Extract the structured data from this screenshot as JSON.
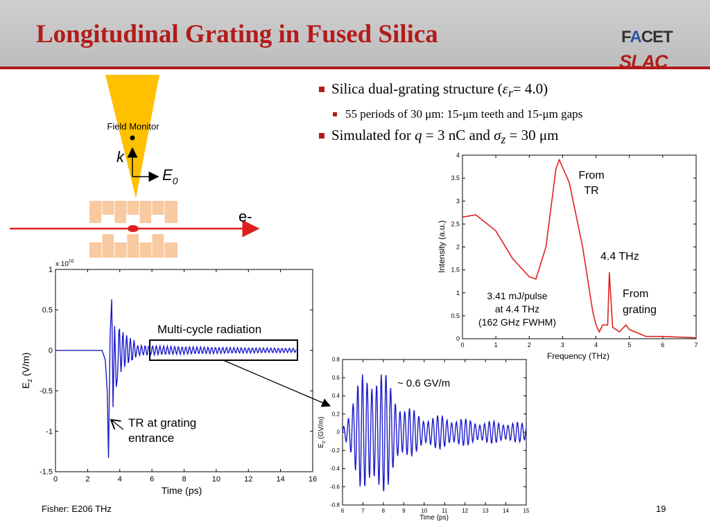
{
  "title": "Longitudinal Grating in Fused Silica",
  "logos": {
    "facet_prefix": "F",
    "facet_a": "A",
    "facet_suffix": "CET",
    "slac": "SLAC"
  },
  "bullets": {
    "b1_text": "Silica dual-grating structure (",
    "b1_eps": "ε",
    "b1_sub": "r",
    "b1_end": "= 4.0)",
    "b2": "55 periods of 30 μm: 15-μm teeth and 15-μm gaps",
    "b3_pre": "Simulated for ",
    "b3_q": "q",
    "b3_mid": " = 3 nC and ",
    "b3_sigma": "σ",
    "b3_sub": "z",
    "b3_end": " = 30 μm"
  },
  "diagram": {
    "field_monitor": "Field Monitor",
    "k": "k",
    "e0": "E",
    "e0_sub": "0",
    "electron": "e-"
  },
  "colors": {
    "accent": "#b31b1b",
    "beam": "#ffc000",
    "grating": "#f9c9a0",
    "trace_blue": "#1a1acc",
    "trace_red": "#e02020"
  },
  "chart_main": {
    "exp_label": "x 10",
    "exp_power": "10",
    "ylabel": "E",
    "ylabel_sub": "z",
    "ylabel_unit": " (V/m)",
    "xlabel": "Time (ps)",
    "xticks": [
      "0",
      "2",
      "4",
      "6",
      "8",
      "10",
      "12",
      "14",
      "16"
    ],
    "yticks": [
      "1",
      "0.5",
      "0",
      "-0.5",
      "-1",
      "-1.5"
    ],
    "annot_multicycle": "Multi-cycle radiation",
    "annot_tr_1": "TR at grating",
    "annot_tr_2": "entrance"
  },
  "chart_spectrum": {
    "xlabel": "Frequency (THz)",
    "ylabel": "Intensity (a.u.)",
    "xticks": [
      "0",
      "1",
      "2",
      "3",
      "4",
      "5",
      "6",
      "7"
    ],
    "yticks": [
      "4",
      "3.5",
      "3",
      "2.5",
      "2",
      "1.5",
      "1",
      "0.5",
      "0"
    ],
    "annot_from_tr_1": "From",
    "annot_from_tr_2": "TR",
    "annot_44": "4.4 THz",
    "annot_grating_1": "From",
    "annot_grating_2": "grating",
    "annot_pulse_1": "3.41 mJ/pulse",
    "annot_pulse_2": "at 4.4 THz",
    "annot_pulse_3": "(162 GHz FWHM)"
  },
  "chart_zoom": {
    "xlabel": "Time (ps)",
    "ylabel": "E",
    "ylabel_sub": "z",
    "ylabel_unit": " (GV/m)",
    "xticks": [
      "6",
      "7",
      "8",
      "9",
      "10",
      "11",
      "12",
      "13",
      "14",
      "15"
    ],
    "yticks": [
      "0.8",
      "0.6",
      "0.4",
      "0.2",
      "0",
      "-0.2",
      "-0.4",
      "-0.6",
      "-0.8"
    ],
    "annot_peak": "~ 0.6 GV/m"
  },
  "chart_data": [
    {
      "type": "line",
      "xlabel": "Time (ps)",
      "ylabel": "Ez (V/m)",
      "y_scale_note": "x 10^10",
      "xlim": [
        0,
        16
      ],
      "ylim": [
        -1.5,
        1
      ],
      "series": [
        {
          "x": [
            0,
            3.0,
            3.2,
            3.35,
            3.5,
            3.7,
            4.0,
            5.0,
            6.0,
            8.0,
            10.0,
            12.0,
            15.0
          ],
          "y": [
            0,
            0,
            -0.35,
            -1.35,
            0.65,
            -0.25,
            0.15,
            0.06,
            0.04,
            0.02,
            0.02,
            0.015,
            0.01
          ]
        }
      ]
    },
    {
      "type": "line",
      "xlabel": "Frequency (THz)",
      "ylabel": "Intensity (a.u.)",
      "xlim": [
        0,
        7
      ],
      "ylim": [
        0,
        4
      ],
      "series": [
        {
          "x": [
            0,
            0.4,
            1.0,
            1.5,
            2.0,
            2.2,
            2.5,
            2.8,
            2.9,
            3.2,
            3.6,
            3.9,
            4.0,
            4.1,
            4.2,
            4.35,
            4.4,
            4.5,
            4.7,
            4.9,
            5.0,
            5.5,
            6.0,
            7.0
          ],
          "y": [
            2.65,
            2.7,
            2.35,
            1.75,
            1.35,
            1.3,
            2.0,
            3.7,
            3.9,
            3.4,
            2.0,
            0.6,
            0.3,
            0.15,
            0.3,
            0.3,
            1.45,
            0.25,
            0.15,
            0.3,
            0.2,
            0.05,
            0.05,
            0.02
          ]
        }
      ]
    },
    {
      "type": "line",
      "xlabel": "Time (ps)",
      "ylabel": "Ez (GV/m)",
      "xlim": [
        6,
        15
      ],
      "ylim": [
        -0.8,
        0.8
      ],
      "series": [
        {
          "x": [
            6,
            7,
            7.5,
            8,
            8.5,
            9,
            10,
            11,
            12,
            13,
            14,
            15
          ],
          "y_amplitude": [
            0.05,
            0.55,
            0.65,
            0.55,
            0.4,
            0.25,
            0.15,
            0.15,
            0.12,
            0.1,
            0.1,
            0.08
          ]
        }
      ]
    }
  ]
}
